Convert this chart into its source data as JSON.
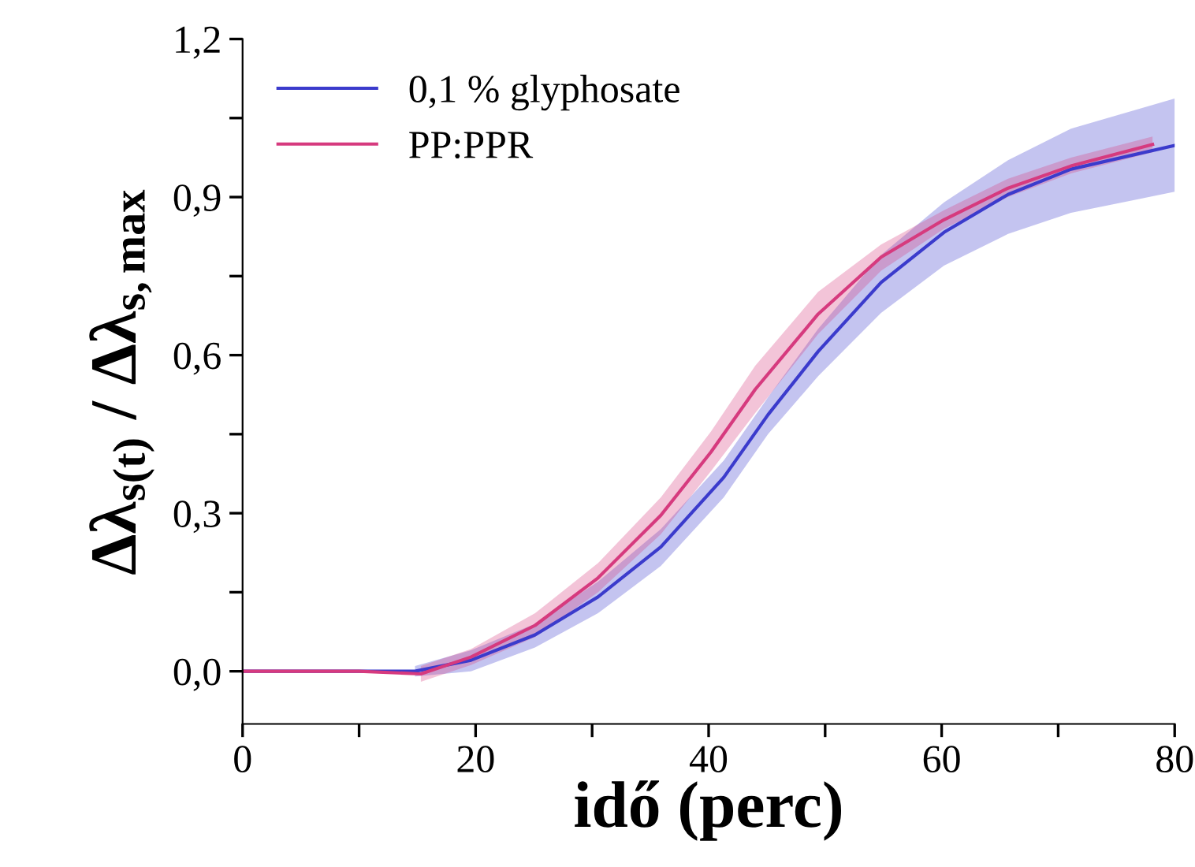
{
  "chart_data": {
    "type": "line",
    "xlabel": "idő (perc)",
    "ylabel": "Δλ$_{s(t)}$ / Δλ$_{s,max}$",
    "xlim": [
      0,
      80
    ],
    "ylim": [
      -0.1,
      1.2
    ],
    "xticks": [
      0,
      {
        "value": 10,
        "label": null
      },
      20,
      {
        "value": 30,
        "label": null
      },
      40,
      {
        "value": 50,
        "label": null
      },
      60,
      {
        "value": 70,
        "label": null
      },
      80
    ],
    "yticks": [
      {
        "value": 0,
        "label": "0,0"
      },
      {
        "value": 0.15,
        "label": null
      },
      {
        "value": 0.3,
        "label": "0,3"
      },
      {
        "value": 0.45,
        "label": null
      },
      {
        "value": 0.6,
        "label": "0,6"
      },
      {
        "value": 0.75,
        "label": null
      },
      {
        "value": 0.9,
        "label": "0,9"
      },
      {
        "value": 1.05,
        "label": null
      },
      {
        "value": 1.2,
        "label": "1,2"
      }
    ],
    "grid": false,
    "legend": "top left",
    "marker": "none",
    "line_style": "solid",
    "series": [
      {
        "name": "0,1 % glyphosate",
        "color": "#3b3bcc",
        "x": [
          0,
          5,
          10,
          14.8,
          19.6,
          25.1,
          30.5,
          35.9,
          41.3,
          45.1,
          49.4,
          54.8,
          60.2,
          65.7,
          71.1,
          80
        ],
        "values": [
          0,
          0,
          0,
          0,
          0.021,
          0.069,
          0.141,
          0.236,
          0.368,
          0.487,
          0.607,
          0.738,
          0.833,
          0.905,
          0.953,
          0.998
        ],
        "lower": [
          null,
          null,
          null,
          -0.01,
          0.0,
          0.045,
          0.11,
          0.2,
          0.33,
          0.45,
          0.56,
          0.68,
          0.77,
          0.83,
          0.87,
          0.91
        ],
        "upper": [
          null,
          null,
          null,
          0.01,
          0.04,
          0.09,
          0.17,
          0.27,
          0.4,
          0.52,
          0.65,
          0.79,
          0.89,
          0.97,
          1.03,
          1.087
        ]
      },
      {
        "name": "PP:PPR",
        "color": "#d63a7e",
        "x": [
          0,
          5,
          10,
          15.3,
          19.6,
          25.1,
          30.5,
          35.9,
          40.2,
          44,
          49.4,
          54.8,
          60.2,
          65.7,
          71.1,
          78.1
        ],
        "values": [
          0,
          0,
          0,
          -0.005,
          0.027,
          0.087,
          0.177,
          0.296,
          0.416,
          0.535,
          0.678,
          0.786,
          0.857,
          0.917,
          0.959,
          1.0
        ],
        "lower": [
          null,
          null,
          null,
          -0.02,
          0.012,
          0.065,
          0.15,
          0.26,
          0.38,
          0.49,
          0.64,
          0.76,
          0.84,
          0.9,
          0.945,
          0.985
        ],
        "upper": [
          null,
          null,
          null,
          0.01,
          0.042,
          0.11,
          0.205,
          0.33,
          0.455,
          0.58,
          0.72,
          0.81,
          0.875,
          0.935,
          0.975,
          1.015
        ]
      }
    ]
  }
}
